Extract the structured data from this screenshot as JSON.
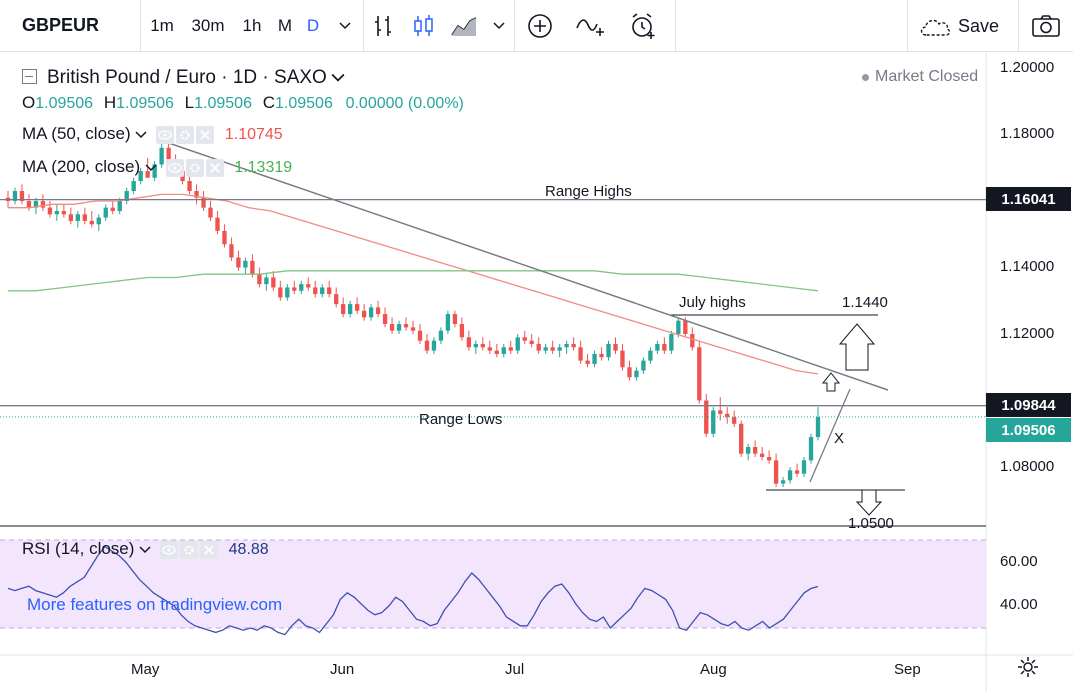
{
  "toolbar": {
    "symbol": "GBPEUR",
    "intervals": [
      "1m",
      "30m",
      "1h",
      "M",
      "D"
    ],
    "active_interval": "D",
    "save_label": "Save"
  },
  "header": {
    "title": "British Pound / Euro · 1D · SAXO",
    "status": "Market Closed",
    "ohlc": {
      "o_label": "O",
      "o": "1.09506",
      "h_label": "H",
      "h": "1.09506",
      "l_label": "L",
      "l": "1.09506",
      "c_label": "C",
      "c": "1.09506",
      "change": "0.00000 (0.00%)"
    }
  },
  "indicators": {
    "ma50": {
      "label": "MA (50, close)",
      "value": "1.10745",
      "color": "#ef5350"
    },
    "ma200": {
      "label": "MA (200, close)",
      "value": "1.13319",
      "color": "#4caf50"
    },
    "rsi": {
      "label": "RSI (14, close)",
      "value": "48.88",
      "color": "#1e3a8a"
    }
  },
  "price_axis": {
    "labels": [
      "1.20000",
      "1.18000",
      "1.16000",
      "1.14000",
      "1.12000",
      "1.10000",
      "1.08000"
    ],
    "tags": [
      {
        "text": "1.16041",
        "color": "#131722"
      },
      {
        "text": "1.09844",
        "color": "#131722"
      },
      {
        "text": "1.09506",
        "color": "#26a69a"
      }
    ]
  },
  "rsi_axis": {
    "labels": [
      "60.00",
      "40.00"
    ]
  },
  "time_axis": {
    "labels": [
      "May",
      "Jun",
      "Jul",
      "Aug",
      "Sep"
    ]
  },
  "annotations": {
    "range_highs": "Range Highs",
    "range_lows": "Range Lows",
    "july_highs": "July highs",
    "target_up": "1.1440",
    "target_down": "1.0500",
    "x_label": "X"
  },
  "watermark": "More features on tradingview.com",
  "chart_data": {
    "type": "candlestick",
    "title": "British Pound / Euro · 1D · SAXO",
    "ylim": [
      1.066,
      1.204
    ],
    "up_color": "#26a69a",
    "down_color": "#ef5350",
    "candles": [
      [
        1.161,
        1.163,
        1.158,
        1.16
      ],
      [
        1.16,
        1.164,
        1.159,
        1.163
      ],
      [
        1.163,
        1.165,
        1.159,
        1.16
      ],
      [
        1.16,
        1.162,
        1.157,
        1.158
      ],
      [
        1.158,
        1.161,
        1.156,
        1.16
      ],
      [
        1.16,
        1.162,
        1.157,
        1.158
      ],
      [
        1.158,
        1.16,
        1.155,
        1.156
      ],
      [
        1.156,
        1.159,
        1.154,
        1.157
      ],
      [
        1.157,
        1.159,
        1.155,
        1.156
      ],
      [
        1.156,
        1.158,
        1.153,
        1.154
      ],
      [
        1.154,
        1.157,
        1.152,
        1.156
      ],
      [
        1.156,
        1.158,
        1.153,
        1.154
      ],
      [
        1.154,
        1.157,
        1.152,
        1.153
      ],
      [
        1.153,
        1.156,
        1.151,
        1.155
      ],
      [
        1.155,
        1.159,
        1.154,
        1.158
      ],
      [
        1.158,
        1.16,
        1.156,
        1.157
      ],
      [
        1.157,
        1.161,
        1.156,
        1.16
      ],
      [
        1.16,
        1.164,
        1.159,
        1.163
      ],
      [
        1.163,
        1.167,
        1.162,
        1.166
      ],
      [
        1.166,
        1.17,
        1.165,
        1.169
      ],
      [
        1.169,
        1.173,
        1.168,
        1.167
      ],
      [
        1.167,
        1.172,
        1.166,
        1.171
      ],
      [
        1.171,
        1.178,
        1.17,
        1.176
      ],
      [
        1.176,
        1.178,
        1.171,
        1.172
      ],
      [
        1.172,
        1.174,
        1.168,
        1.169
      ],
      [
        1.169,
        1.171,
        1.165,
        1.166
      ],
      [
        1.166,
        1.168,
        1.162,
        1.163
      ],
      [
        1.163,
        1.165,
        1.159,
        1.161
      ],
      [
        1.161,
        1.163,
        1.157,
        1.158
      ],
      [
        1.158,
        1.16,
        1.154,
        1.155
      ],
      [
        1.155,
        1.157,
        1.15,
        1.151
      ],
      [
        1.151,
        1.153,
        1.146,
        1.147
      ],
      [
        1.147,
        1.149,
        1.142,
        1.143
      ],
      [
        1.143,
        1.145,
        1.139,
        1.14
      ],
      [
        1.14,
        1.143,
        1.138,
        1.142
      ],
      [
        1.142,
        1.144,
        1.137,
        1.138
      ],
      [
        1.138,
        1.14,
        1.134,
        1.135
      ],
      [
        1.135,
        1.138,
        1.133,
        1.137
      ],
      [
        1.137,
        1.139,
        1.133,
        1.134
      ],
      [
        1.134,
        1.136,
        1.13,
        1.131
      ],
      [
        1.131,
        1.135,
        1.13,
        1.134
      ],
      [
        1.134,
        1.136,
        1.132,
        1.133
      ],
      [
        1.133,
        1.136,
        1.132,
        1.135
      ],
      [
        1.135,
        1.137,
        1.133,
        1.134
      ],
      [
        1.134,
        1.136,
        1.131,
        1.132
      ],
      [
        1.132,
        1.135,
        1.131,
        1.134
      ],
      [
        1.134,
        1.136,
        1.131,
        1.132
      ],
      [
        1.132,
        1.134,
        1.128,
        1.129
      ],
      [
        1.129,
        1.131,
        1.125,
        1.126
      ],
      [
        1.126,
        1.13,
        1.125,
        1.129
      ],
      [
        1.129,
        1.131,
        1.126,
        1.127
      ],
      [
        1.127,
        1.129,
        1.124,
        1.125
      ],
      [
        1.125,
        1.129,
        1.124,
        1.128
      ],
      [
        1.128,
        1.13,
        1.125,
        1.126
      ],
      [
        1.126,
        1.128,
        1.122,
        1.123
      ],
      [
        1.123,
        1.125,
        1.12,
        1.121
      ],
      [
        1.121,
        1.124,
        1.12,
        1.123
      ],
      [
        1.123,
        1.125,
        1.121,
        1.122
      ],
      [
        1.122,
        1.124,
        1.12,
        1.121
      ],
      [
        1.121,
        1.123,
        1.117,
        1.118
      ],
      [
        1.118,
        1.12,
        1.114,
        1.115
      ],
      [
        1.115,
        1.119,
        1.114,
        1.118
      ],
      [
        1.118,
        1.122,
        1.117,
        1.121
      ],
      [
        1.121,
        1.127,
        1.12,
        1.126
      ],
      [
        1.126,
        1.127,
        1.122,
        1.123
      ],
      [
        1.123,
        1.125,
        1.118,
        1.119
      ],
      [
        1.119,
        1.121,
        1.115,
        1.116
      ],
      [
        1.116,
        1.118,
        1.114,
        1.117
      ],
      [
        1.117,
        1.119,
        1.115,
        1.116
      ],
      [
        1.116,
        1.118,
        1.114,
        1.115
      ],
      [
        1.115,
        1.117,
        1.113,
        1.114
      ],
      [
        1.114,
        1.117,
        1.113,
        1.116
      ],
      [
        1.116,
        1.118,
        1.114,
        1.115
      ],
      [
        1.115,
        1.12,
        1.114,
        1.119
      ],
      [
        1.119,
        1.121,
        1.117,
        1.118
      ],
      [
        1.118,
        1.12,
        1.116,
        1.117
      ],
      [
        1.117,
        1.119,
        1.114,
        1.115
      ],
      [
        1.115,
        1.117,
        1.114,
        1.116
      ],
      [
        1.116,
        1.118,
        1.114,
        1.115
      ],
      [
        1.115,
        1.117,
        1.113,
        1.116
      ],
      [
        1.116,
        1.118,
        1.114,
        1.117
      ],
      [
        1.117,
        1.119,
        1.115,
        1.116
      ],
      [
        1.116,
        1.118,
        1.111,
        1.112
      ],
      [
        1.112,
        1.114,
        1.11,
        1.111
      ],
      [
        1.111,
        1.115,
        1.11,
        1.114
      ],
      [
        1.114,
        1.116,
        1.112,
        1.113
      ],
      [
        1.113,
        1.118,
        1.112,
        1.117
      ],
      [
        1.117,
        1.119,
        1.114,
        1.115
      ],
      [
        1.115,
        1.117,
        1.109,
        1.11
      ],
      [
        1.11,
        1.112,
        1.106,
        1.107
      ],
      [
        1.107,
        1.11,
        1.106,
        1.109
      ],
      [
        1.109,
        1.113,
        1.108,
        1.112
      ],
      [
        1.112,
        1.116,
        1.111,
        1.115
      ],
      [
        1.115,
        1.118,
        1.114,
        1.117
      ],
      [
        1.117,
        1.119,
        1.114,
        1.115
      ],
      [
        1.115,
        1.121,
        1.114,
        1.12
      ],
      [
        1.12,
        1.125,
        1.119,
        1.124
      ],
      [
        1.124,
        1.125,
        1.119,
        1.12
      ],
      [
        1.12,
        1.122,
        1.115,
        1.116
      ],
      [
        1.116,
        1.118,
        1.099,
        1.1
      ],
      [
        1.1,
        1.102,
        1.089,
        1.09
      ],
      [
        1.09,
        1.098,
        1.089,
        1.097
      ],
      [
        1.097,
        1.101,
        1.094,
        1.096
      ],
      [
        1.096,
        1.098,
        1.093,
        1.095
      ],
      [
        1.095,
        1.097,
        1.092,
        1.093
      ],
      [
        1.093,
        1.094,
        1.083,
        1.084
      ],
      [
        1.084,
        1.087,
        1.082,
        1.086
      ],
      [
        1.086,
        1.088,
        1.083,
        1.084
      ],
      [
        1.084,
        1.086,
        1.082,
        1.083
      ],
      [
        1.083,
        1.085,
        1.081,
        1.082
      ],
      [
        1.082,
        1.084,
        1.074,
        1.075
      ],
      [
        1.075,
        1.077,
        1.074,
        1.076
      ],
      [
        1.076,
        1.08,
        1.075,
        1.079
      ],
      [
        1.079,
        1.081,
        1.077,
        1.078
      ],
      [
        1.078,
        1.083,
        1.077,
        1.082
      ],
      [
        1.082,
        1.09,
        1.081,
        1.089
      ],
      [
        1.089,
        1.098,
        1.088,
        1.095
      ]
    ],
    "ma50": [
      1.158,
      1.158,
      1.159,
      1.159,
      1.16,
      1.16,
      1.161,
      1.162,
      1.162,
      1.161,
      1.16,
      1.158,
      1.157,
      1.155,
      1.153,
      1.151,
      1.149,
      1.147,
      1.145,
      1.143,
      1.141,
      1.139,
      1.137,
      1.135,
      1.133,
      1.131,
      1.129,
      1.127,
      1.125,
      1.123,
      1.121,
      1.119,
      1.117,
      1.115,
      1.113,
      1.111,
      1.109,
      1.108
    ],
    "ma200": [
      1.133,
      1.133,
      1.134,
      1.135,
      1.136,
      1.137,
      1.137,
      1.138,
      1.138,
      1.138,
      1.139,
      1.139,
      1.139,
      1.139,
      1.139,
      1.139,
      1.139,
      1.139,
      1.139,
      1.139,
      1.139,
      1.139,
      1.138,
      1.138,
      1.138,
      1.137,
      1.136,
      1.135,
      1.134,
      1.133
    ],
    "rsi": [
      48,
      47,
      48,
      49,
      47,
      46,
      45,
      44,
      46,
      49,
      51,
      53,
      58,
      63,
      67,
      65,
      63,
      60,
      56,
      52,
      49,
      46,
      44,
      42,
      40,
      36,
      33,
      31,
      30,
      29,
      28,
      29,
      31,
      30,
      29,
      30,
      29,
      31,
      30,
      28,
      27,
      31,
      34,
      31,
      30,
      28,
      32,
      36,
      43,
      46,
      44,
      41,
      38,
      36,
      37,
      40,
      44,
      42,
      38,
      34,
      33,
      31,
      32,
      38,
      42,
      46,
      51,
      55,
      52,
      48,
      44,
      40,
      35,
      33,
      31,
      31,
      36,
      42,
      46,
      49,
      50,
      46,
      41,
      37,
      34,
      33,
      35,
      30,
      33,
      36,
      39,
      44,
      48,
      47,
      45,
      43,
      38,
      30,
      29,
      33,
      37,
      36,
      34,
      32,
      31,
      33,
      30,
      29,
      31,
      33,
      30,
      32,
      34,
      38,
      42,
      46,
      48,
      48.88
    ],
    "rsi_range": [
      0,
      100
    ],
    "rsi_levels": [
      30,
      70
    ],
    "horizontal_levels": [
      {
        "value": 1.16041,
        "label": "Range Highs"
      },
      {
        "value": 1.09844,
        "label": "Range Lows"
      },
      {
        "value": 1.144,
        "label": "July highs"
      },
      {
        "value": 1.05,
        "label": ""
      }
    ],
    "x_ticks": [
      "May",
      "Jun",
      "Jul",
      "Aug",
      "Sep"
    ]
  }
}
